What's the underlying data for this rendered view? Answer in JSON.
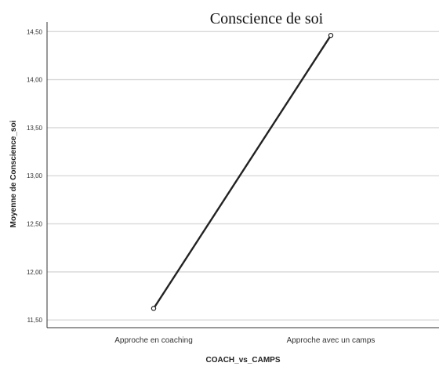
{
  "chart_data": {
    "type": "line",
    "title": "Conscience de soi",
    "xlabel": "COACH_vs_CAMPS",
    "ylabel": "Moyenne de Conscience_soi",
    "categories": [
      "Approche en coaching",
      "Approche avec un camps"
    ],
    "series": [
      {
        "values": [
          11.62,
          14.46
        ]
      }
    ],
    "ylim": [
      11.42,
      14.6
    ],
    "yticks": [
      "11,50",
      "12,00",
      "12,50",
      "13,00",
      "13,50",
      "14,00",
      "14,50"
    ],
    "grid": true,
    "line_color": "#222222",
    "grid_color": "#d9d9d9"
  }
}
